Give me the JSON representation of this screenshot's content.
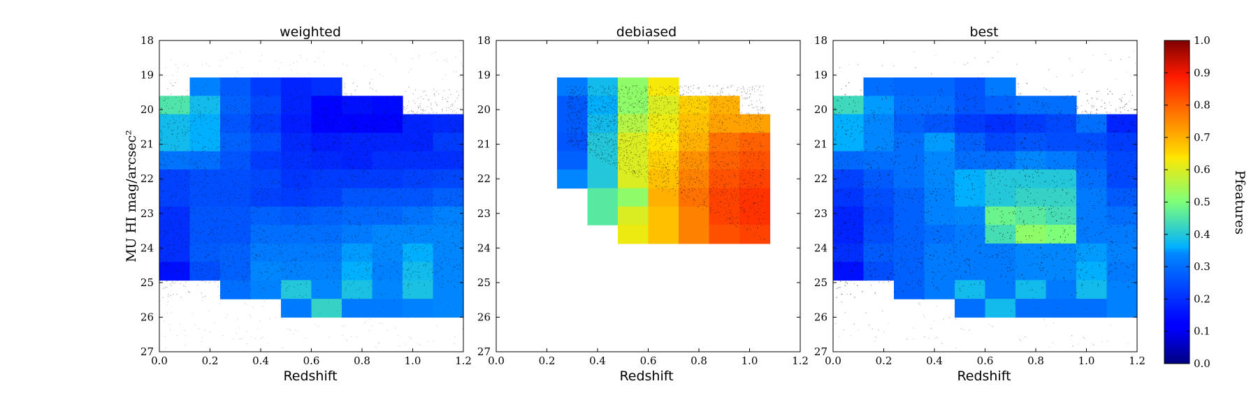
{
  "chart_data": [
    {
      "type": "heatmap",
      "title": "weighted",
      "xlabel": "Redshift",
      "ylabel": "MU HI mag/arcsec²",
      "xlim": [
        0.0,
        1.2
      ],
      "ylim": [
        27,
        18
      ],
      "xticks": [
        "0.0",
        "0.2",
        "0.4",
        "0.6",
        "0.8",
        "1.0",
        "1.2"
      ],
      "yticks": [
        "18",
        "19",
        "20",
        "21",
        "22",
        "23",
        "24",
        "25",
        "26",
        "27"
      ],
      "x_bin_edges": [
        0.0,
        0.12,
        0.24,
        0.36,
        0.48,
        0.6,
        0.72,
        0.84,
        0.96,
        1.08,
        1.2
      ],
      "y_bin_edges": [
        19.07,
        19.6,
        20.13,
        20.67,
        21.2,
        21.73,
        22.27,
        22.8,
        23.33,
        23.87,
        24.4,
        24.93,
        25.47,
        26.0
      ],
      "values": [
        [
          null,
          0.33,
          0.27,
          0.22,
          0.18,
          0.2,
          null,
          null,
          null,
          null
        ],
        [
          0.45,
          0.38,
          0.28,
          0.24,
          0.18,
          0.13,
          0.15,
          0.14,
          null,
          null
        ],
        [
          0.38,
          0.36,
          0.26,
          0.22,
          0.17,
          0.13,
          0.13,
          0.13,
          0.18,
          0.19
        ],
        [
          0.38,
          0.36,
          0.28,
          0.25,
          0.19,
          0.17,
          0.18,
          0.18,
          0.18,
          0.22
        ],
        [
          0.31,
          0.3,
          0.26,
          0.22,
          0.2,
          0.19,
          0.18,
          0.2,
          0.2,
          0.2
        ],
        [
          0.23,
          0.25,
          0.25,
          0.24,
          0.21,
          0.22,
          0.22,
          0.22,
          0.23,
          0.24
        ],
        [
          0.23,
          0.25,
          0.25,
          0.23,
          0.22,
          0.23,
          0.26,
          0.26,
          0.26,
          0.28
        ],
        [
          0.2,
          0.26,
          0.26,
          0.28,
          0.27,
          0.28,
          0.29,
          0.29,
          0.31,
          0.33
        ],
        [
          0.2,
          0.26,
          0.26,
          0.3,
          0.3,
          0.3,
          0.32,
          0.34,
          0.34,
          0.34
        ],
        [
          0.2,
          0.27,
          0.28,
          0.32,
          0.32,
          0.32,
          0.35,
          0.34,
          0.36,
          0.34
        ],
        [
          0.15,
          0.25,
          0.28,
          0.34,
          0.33,
          0.33,
          0.36,
          0.33,
          0.38,
          0.34
        ],
        [
          null,
          null,
          0.3,
          0.33,
          0.4,
          0.34,
          0.39,
          0.34,
          0.39,
          0.34
        ],
        [
          null,
          null,
          null,
          null,
          0.32,
          0.42,
          0.32,
          0.32,
          0.33,
          0.34
        ]
      ]
    },
    {
      "type": "heatmap",
      "title": "debiased",
      "xlabel": "Redshift",
      "xlim": [
        0.0,
        1.2
      ],
      "ylim": [
        27,
        18
      ],
      "xticks": [
        "0.0",
        "0.2",
        "0.4",
        "0.6",
        "0.8",
        "1.0",
        "1.2"
      ],
      "yticks": [
        "18",
        "19",
        "20",
        "21",
        "22",
        "23",
        "24",
        "25",
        "26",
        "27"
      ],
      "x_bin_edges": [
        0.24,
        0.36,
        0.48,
        0.6,
        0.72,
        0.84,
        0.96,
        1.08
      ],
      "y_bin_edges": [
        19.07,
        19.6,
        20.13,
        20.67,
        21.2,
        21.73,
        22.27,
        22.8,
        23.33,
        23.87
      ],
      "values": [
        [
          0.32,
          0.38,
          0.52,
          0.63,
          null,
          null,
          null
        ],
        [
          0.27,
          0.36,
          0.52,
          0.6,
          0.66,
          0.7,
          null
        ],
        [
          0.27,
          0.38,
          0.56,
          0.62,
          0.68,
          0.72,
          0.72
        ],
        [
          0.26,
          0.4,
          0.6,
          0.64,
          0.7,
          0.78,
          0.8
        ],
        [
          0.28,
          0.4,
          0.6,
          0.66,
          0.74,
          0.8,
          0.82
        ],
        [
          0.34,
          0.4,
          0.6,
          0.68,
          0.76,
          0.82,
          0.84
        ],
        [
          null,
          0.46,
          0.52,
          0.7,
          0.78,
          0.84,
          0.86
        ],
        [
          null,
          0.46,
          0.6,
          0.68,
          0.76,
          0.84,
          0.86
        ],
        [
          null,
          null,
          0.62,
          0.68,
          0.76,
          0.82,
          0.84
        ]
      ]
    },
    {
      "type": "heatmap",
      "title": "best",
      "xlabel": "Redshift",
      "xlim": [
        0.0,
        1.2
      ],
      "ylim": [
        27,
        18
      ],
      "xticks": [
        "0.0",
        "0.2",
        "0.4",
        "0.6",
        "0.8",
        "1.0",
        "1.2"
      ],
      "yticks": [
        "18",
        "19",
        "20",
        "21",
        "22",
        "23",
        "24",
        "25",
        "26",
        "27"
      ],
      "x_bin_edges": [
        0.0,
        0.12,
        0.24,
        0.36,
        0.48,
        0.6,
        0.72,
        0.84,
        0.96,
        1.08,
        1.2
      ],
      "y_bin_edges": [
        19.07,
        19.6,
        20.13,
        20.67,
        21.2,
        21.73,
        22.27,
        22.8,
        23.33,
        23.87,
        24.4,
        24.93,
        25.47,
        26.0
      ],
      "values": [
        [
          null,
          0.3,
          0.29,
          0.29,
          0.26,
          0.32,
          null,
          null,
          null,
          null
        ],
        [
          0.43,
          0.35,
          0.3,
          0.3,
          0.26,
          0.28,
          0.3,
          0.3,
          null,
          null
        ],
        [
          0.36,
          0.34,
          0.28,
          0.26,
          0.22,
          0.2,
          0.22,
          0.24,
          0.3,
          0.18
        ],
        [
          0.36,
          0.34,
          0.3,
          0.35,
          0.28,
          0.24,
          0.26,
          0.25,
          0.25,
          0.22
        ],
        [
          0.29,
          0.3,
          0.3,
          0.34,
          0.3,
          0.3,
          0.34,
          0.32,
          0.28,
          0.24
        ],
        [
          0.23,
          0.27,
          0.3,
          0.34,
          0.36,
          0.4,
          0.4,
          0.4,
          0.3,
          0.24
        ],
        [
          0.21,
          0.25,
          0.28,
          0.33,
          0.36,
          0.4,
          0.42,
          0.42,
          0.32,
          0.27
        ],
        [
          0.18,
          0.24,
          0.28,
          0.33,
          0.34,
          0.48,
          0.46,
          0.44,
          0.32,
          0.3
        ],
        [
          0.18,
          0.25,
          0.28,
          0.3,
          0.32,
          0.44,
          0.52,
          0.5,
          0.32,
          0.32
        ],
        [
          0.2,
          0.27,
          0.28,
          0.32,
          0.32,
          0.32,
          0.34,
          0.34,
          0.35,
          0.33
        ],
        [
          0.15,
          0.25,
          0.28,
          0.32,
          0.32,
          0.32,
          0.34,
          0.34,
          0.36,
          0.32
        ],
        [
          null,
          null,
          0.28,
          0.32,
          0.38,
          0.32,
          0.38,
          0.32,
          0.38,
          0.33
        ],
        [
          null,
          null,
          null,
          null,
          0.3,
          0.38,
          0.3,
          0.3,
          0.3,
          0.33
        ]
      ]
    }
  ],
  "colorbar": {
    "label": "Pfeatures",
    "range": [
      0.0,
      1.0
    ],
    "ticks": [
      "0.0",
      "0.1",
      "0.2",
      "0.3",
      "0.4",
      "0.5",
      "0.6",
      "0.7",
      "0.8",
      "0.9",
      "1.0"
    ],
    "colormap": "jet"
  }
}
